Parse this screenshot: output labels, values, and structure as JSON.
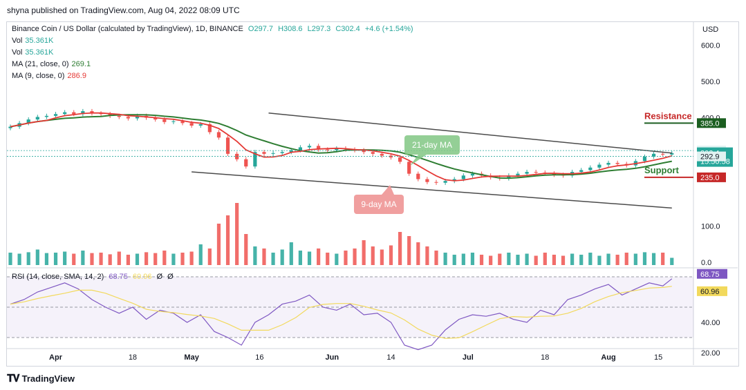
{
  "publisher": "shyna published on TradingView.com, Aug 04, 2022 08:09 UTC",
  "footer_brand": "TradingView",
  "header": {
    "title": "Binance Coin / US Dollar (calculated by TradingView), 1D, BINANCE",
    "open": "O297.7",
    "high": "H308.6",
    "low": "L297.3",
    "close": "C302.4",
    "change": "+4.6 (+1.54%)"
  },
  "legend": {
    "vol1_label": "Vol",
    "vol1_value": "35.361K",
    "vol2_label": "Vol",
    "vol2_value": "35.361K",
    "ma21_label": "MA (21, close, 0)",
    "ma21_value": "269.1",
    "ma9_label": "MA (9, close, 0)",
    "ma9_value": "286.9",
    "rsi_label": "RSI (14, close, SMA, 14, 2)",
    "rsi_value": "68.75",
    "rsi_sma_value": "60.96",
    "rsi_extra1": "Ø",
    "rsi_extra2": "Ø"
  },
  "colors": {
    "up": "#26a69a",
    "down": "#ef5350",
    "ma21": "#2e7d32",
    "ma9": "#e53935",
    "rsi": "#7e57c2",
    "rsi_sma": "#f2d95c",
    "channel": "#4a4a4a"
  },
  "annotations": {
    "resistance": "Resistance",
    "support": "Support",
    "ma21_callout": "21-day MA",
    "ma9_callout": "9-day MA"
  },
  "price_axis": {
    "currency": "USD",
    "ticks": [
      "600.0",
      "500.0",
      "400.0",
      "100.0",
      "0.0"
    ],
    "labels": {
      "resistance": "385.0",
      "high": "309.1",
      "last": "302.4",
      "countdown": "15:50:58",
      "low": "292.9",
      "support": "235.0"
    }
  },
  "rsi_axis": {
    "ticks": [
      "60.00",
      "40.00",
      "20.00"
    ]
  },
  "time_axis": [
    "Apr",
    "18",
    "May",
    "16",
    "Jun",
    "14",
    "Jul",
    "18",
    "Aug",
    "15"
  ],
  "chart_data": {
    "type": "candlestick",
    "title": "Binance Coin / US Dollar (calculated by TradingView), 1D, BINANCE",
    "period": "1D",
    "x_range": [
      "2022-03-22",
      "2022-08-04"
    ],
    "y_range_price": [
      0,
      630
    ],
    "last": {
      "open": 297.7,
      "high": 308.6,
      "low": 297.3,
      "close": 302.4,
      "change": 4.6,
      "change_pct": 1.54
    },
    "ma21_last": 269.1,
    "ma9_last": 286.9,
    "rsi_last": 68.75,
    "rsi_sma_last": 60.96,
    "rsi_range": [
      15,
      75
    ],
    "rsi_bands": [
      70,
      50,
      30
    ],
    "resistance": 385.0,
    "support": 235.0,
    "close_series": [
      [
        0,
        375
      ],
      [
        2,
        385
      ],
      [
        4,
        395
      ],
      [
        6,
        402
      ],
      [
        8,
        405
      ],
      [
        10,
        410
      ],
      [
        12,
        415
      ],
      [
        14,
        410
      ],
      [
        16,
        418
      ],
      [
        18,
        412
      ],
      [
        20,
        410
      ],
      [
        22,
        405
      ],
      [
        24,
        402
      ],
      [
        26,
        398
      ],
      [
        28,
        405
      ],
      [
        30,
        400
      ],
      [
        32,
        395
      ],
      [
        34,
        388
      ],
      [
        36,
        390
      ],
      [
        38,
        385
      ],
      [
        40,
        378
      ],
      [
        42,
        382
      ],
      [
        44,
        360
      ],
      [
        46,
        345
      ],
      [
        48,
        300
      ],
      [
        50,
        285
      ],
      [
        52,
        265
      ],
      [
        54,
        305
      ],
      [
        56,
        300
      ],
      [
        58,
        302
      ],
      [
        60,
        305
      ],
      [
        62,
        310
      ],
      [
        64,
        318
      ],
      [
        66,
        322
      ],
      [
        68,
        312
      ],
      [
        70,
        310
      ],
      [
        72,
        315
      ],
      [
        74,
        312
      ],
      [
        76,
        310
      ],
      [
        78,
        305
      ],
      [
        80,
        300
      ],
      [
        82,
        295
      ],
      [
        84,
        290
      ],
      [
        86,
        278
      ],
      [
        88,
        245
      ],
      [
        90,
        230
      ],
      [
        92,
        222
      ],
      [
        94,
        220
      ],
      [
        96,
        225
      ],
      [
        98,
        230
      ],
      [
        100,
        240
      ],
      [
        102,
        245
      ],
      [
        104,
        240
      ],
      [
        106,
        235
      ],
      [
        108,
        232
      ],
      [
        110,
        240
      ],
      [
        112,
        245
      ],
      [
        114,
        250
      ],
      [
        116,
        248
      ],
      [
        118,
        246
      ],
      [
        120,
        242
      ],
      [
        122,
        240
      ],
      [
        124,
        250
      ],
      [
        126,
        255
      ],
      [
        128,
        262
      ],
      [
        130,
        270
      ],
      [
        132,
        275
      ],
      [
        134,
        272
      ],
      [
        136,
        268
      ],
      [
        138,
        280
      ],
      [
        140,
        292
      ],
      [
        142,
        300
      ],
      [
        144,
        298
      ],
      [
        146,
        302
      ]
    ],
    "volume_series": [
      [
        0,
        60
      ],
      [
        2,
        55
      ],
      [
        4,
        62
      ],
      [
        6,
        75
      ],
      [
        8,
        58
      ],
      [
        10,
        60
      ],
      [
        12,
        65
      ],
      [
        14,
        55
      ],
      [
        16,
        70
      ],
      [
        18,
        58
      ],
      [
        20,
        60
      ],
      [
        22,
        52
      ],
      [
        24,
        65
      ],
      [
        26,
        50
      ],
      [
        28,
        55
      ],
      [
        30,
        62
      ],
      [
        32,
        58
      ],
      [
        34,
        70
      ],
      [
        36,
        55
      ],
      [
        38,
        60
      ],
      [
        40,
        65
      ],
      [
        42,
        100
      ],
      [
        44,
        80
      ],
      [
        46,
        200
      ],
      [
        48,
        240
      ],
      [
        50,
        300
      ],
      [
        52,
        150
      ],
      [
        54,
        90
      ],
      [
        56,
        80
      ],
      [
        58,
        60
      ],
      [
        60,
        75
      ],
      [
        62,
        110
      ],
      [
        64,
        70
      ],
      [
        66,
        65
      ],
      [
        68,
        80
      ],
      [
        70,
        60
      ],
      [
        72,
        55
      ],
      [
        74,
        70
      ],
      [
        76,
        80
      ],
      [
        78,
        120
      ],
      [
        80,
        90
      ],
      [
        82,
        75
      ],
      [
        84,
        95
      ],
      [
        86,
        160
      ],
      [
        88,
        140
      ],
      [
        90,
        110
      ],
      [
        92,
        90
      ],
      [
        94,
        70
      ],
      [
        96,
        60
      ],
      [
        98,
        50
      ],
      [
        100,
        55
      ],
      [
        102,
        60
      ],
      [
        104,
        50
      ],
      [
        106,
        45
      ],
      [
        108,
        55
      ],
      [
        110,
        60
      ],
      [
        112,
        50
      ],
      [
        114,
        55
      ],
      [
        116,
        45
      ],
      [
        118,
        60
      ],
      [
        120,
        50
      ],
      [
        122,
        45
      ],
      [
        124,
        55
      ],
      [
        126,
        50
      ],
      [
        128,
        60
      ],
      [
        130,
        45
      ],
      [
        132,
        55
      ],
      [
        134,
        50
      ],
      [
        136,
        60
      ],
      [
        138,
        55
      ],
      [
        140,
        62
      ],
      [
        142,
        58
      ],
      [
        144,
        60
      ],
      [
        146,
        35
      ]
    ],
    "rsi_series": [
      [
        0,
        52
      ],
      [
        3,
        55
      ],
      [
        6,
        60
      ],
      [
        9,
        63
      ],
      [
        12,
        66
      ],
      [
        15,
        62
      ],
      [
        18,
        55
      ],
      [
        21,
        50
      ],
      [
        24,
        46
      ],
      [
        27,
        50
      ],
      [
        30,
        42
      ],
      [
        33,
        48
      ],
      [
        36,
        46
      ],
      [
        39,
        40
      ],
      [
        42,
        45
      ],
      [
        45,
        34
      ],
      [
        48,
        30
      ],
      [
        51,
        25
      ],
      [
        54,
        40
      ],
      [
        57,
        45
      ],
      [
        60,
        52
      ],
      [
        63,
        54
      ],
      [
        66,
        58
      ],
      [
        69,
        50
      ],
      [
        72,
        48
      ],
      [
        75,
        52
      ],
      [
        78,
        45
      ],
      [
        81,
        46
      ],
      [
        84,
        40
      ],
      [
        87,
        25
      ],
      [
        90,
        22
      ],
      [
        93,
        25
      ],
      [
        96,
        35
      ],
      [
        99,
        42
      ],
      [
        102,
        45
      ],
      [
        105,
        44
      ],
      [
        108,
        46
      ],
      [
        111,
        42
      ],
      [
        114,
        40
      ],
      [
        117,
        48
      ],
      [
        120,
        45
      ],
      [
        123,
        55
      ],
      [
        126,
        58
      ],
      [
        129,
        62
      ],
      [
        132,
        65
      ],
      [
        135,
        58
      ],
      [
        138,
        62
      ],
      [
        141,
        66
      ],
      [
        144,
        64
      ],
      [
        146,
        68.75
      ]
    ]
  }
}
